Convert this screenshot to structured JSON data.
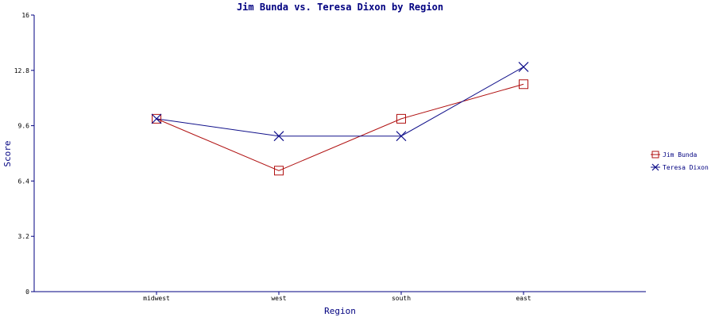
{
  "chart_data": {
    "type": "line",
    "title": "Jim Bunda vs. Teresa Dixon by Region",
    "xlabel": "Region",
    "ylabel": "Score",
    "categories": [
      "midwest",
      "west",
      "south",
      "east"
    ],
    "ylim": [
      0,
      16
    ],
    "yticks": [
      "0",
      "3.2",
      "6.4",
      "9.6",
      "12.8",
      "16"
    ],
    "grid": false,
    "legend_position": "right",
    "series": [
      {
        "name": "Jim Bunda",
        "values": [
          10,
          7,
          10,
          12
        ],
        "color": "#b01010",
        "marker": "square"
      },
      {
        "name": "Teresa Dixon",
        "values": [
          10,
          9,
          9,
          13
        ],
        "color": "#10108a",
        "marker": "x"
      }
    ],
    "colors": {
      "text": "#000080",
      "axis": "#000080",
      "tick_text": "#000000"
    }
  }
}
